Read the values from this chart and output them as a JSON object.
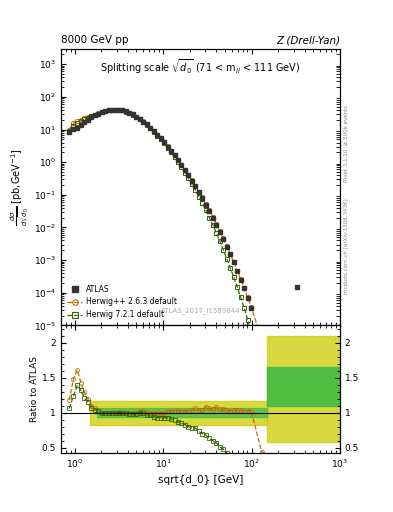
{
  "title_left": "8000 GeV pp",
  "title_right": "Z (Drell-Yan)",
  "plot_title": "Splitting scale $\\sqrt{\\overline{d_0}}$ (71 < m$_{ll}$ < 111 GeV)",
  "ylabel_main": "d$\\sigma$/dsqrt[d_0] [pb,GeV$^{-1}$]",
  "ylabel_ratio": "Ratio to ATLAS",
  "xlabel": "sqrt{d_0} [GeV]",
  "watermark": "ATLAS_2017_I1589844",
  "rivet_label": "Rivet 3.1.10, ≥ 500k events",
  "inspire_label": "mcplots.cern.ch [arXiv:1306.3436]",
  "xlim": [
    0.7,
    1000
  ],
  "ylim_main": [
    1e-05,
    3000.0
  ],
  "ylim_ratio": [
    0.42,
    2.25
  ],
  "atlas_x": [
    0.87,
    0.97,
    1.07,
    1.18,
    1.29,
    1.41,
    1.55,
    1.69,
    1.85,
    2.02,
    2.21,
    2.42,
    2.65,
    2.9,
    3.17,
    3.47,
    3.8,
    4.16,
    4.55,
    4.98,
    5.45,
    5.97,
    6.53,
    7.15,
    7.83,
    8.57,
    9.38,
    10.27,
    11.24,
    12.3,
    13.47,
    14.75,
    16.15,
    17.68,
    19.36,
    21.19,
    23.2,
    25.4,
    27.8,
    30.45,
    33.3,
    36.5,
    40.0,
    43.8,
    47.95,
    52.5,
    57.5,
    63.0,
    69.0,
    75.5,
    82.7,
    90.6,
    99.2,
    330.0
  ],
  "atlas_y": [
    8.5,
    10.5,
    11.5,
    14.0,
    17.0,
    20.0,
    24.0,
    27.0,
    30.0,
    34.0,
    37.0,
    39.0,
    41.0,
    41.0,
    40.0,
    38.5,
    36.0,
    33.0,
    29.0,
    25.0,
    21.0,
    17.5,
    14.5,
    11.5,
    9.0,
    7.0,
    5.4,
    4.1,
    3.0,
    2.2,
    1.6,
    1.15,
    0.82,
    0.58,
    0.4,
    0.27,
    0.18,
    0.12,
    0.08,
    0.05,
    0.032,
    0.02,
    0.012,
    0.0074,
    0.0044,
    0.0026,
    0.0015,
    0.00085,
    0.00046,
    0.00025,
    0.000135,
    7e-05,
    3.5e-05,
    0.00015
  ],
  "hw263_x": [
    0.87,
    0.97,
    1.07,
    1.18,
    1.29,
    1.41,
    1.55,
    1.69,
    1.85,
    2.02,
    2.21,
    2.42,
    2.65,
    2.9,
    3.17,
    3.47,
    3.8,
    4.16,
    4.55,
    4.98,
    5.45,
    5.97,
    6.53,
    7.15,
    7.83,
    8.57,
    9.38,
    10.27,
    11.24,
    12.3,
    13.47,
    14.75,
    16.15,
    17.68,
    19.36,
    21.19,
    23.2,
    25.4,
    27.8,
    30.45,
    33.3,
    36.5,
    40.0,
    43.8,
    47.95,
    52.5,
    57.5,
    63.0,
    69.0,
    75.5,
    82.7,
    90.6,
    99.2,
    130.0,
    330.0,
    900.0
  ],
  "hw263_y": [
    10.0,
    15.5,
    18.5,
    20.0,
    22.0,
    24.0,
    26.5,
    28.5,
    31.0,
    34.0,
    37.0,
    39.0,
    41.0,
    41.0,
    40.5,
    38.5,
    36.0,
    33.0,
    29.0,
    25.0,
    21.5,
    18.0,
    14.5,
    11.5,
    9.0,
    7.0,
    5.4,
    4.1,
    3.05,
    2.25,
    1.65,
    1.18,
    0.84,
    0.59,
    0.41,
    0.28,
    0.19,
    0.125,
    0.083,
    0.054,
    0.034,
    0.021,
    0.013,
    0.0078,
    0.0046,
    0.0027,
    0.00155,
    0.00088,
    0.00048,
    0.00026,
    0.000138,
    7.2e-05,
    3.6e-05,
    4e-06,
    3.2e-07,
    1e-08
  ],
  "hw721_x": [
    0.87,
    0.97,
    1.07,
    1.18,
    1.29,
    1.41,
    1.55,
    1.69,
    1.85,
    2.02,
    2.21,
    2.42,
    2.65,
    2.9,
    3.17,
    3.47,
    3.8,
    4.16,
    4.55,
    4.98,
    5.45,
    5.97,
    6.53,
    7.15,
    7.83,
    8.57,
    9.38,
    10.27,
    11.24,
    12.3,
    13.47,
    14.75,
    16.15,
    17.68,
    19.36,
    21.19,
    23.2,
    25.4,
    27.8,
    30.45,
    33.3,
    36.5,
    40.0,
    43.8,
    47.95,
    52.5,
    57.5,
    63.0,
    69.0,
    75.5,
    82.7,
    90.6,
    99.2,
    130.0,
    330.0,
    900.0
  ],
  "hw721_y": [
    9.0,
    13.0,
    16.0,
    18.5,
    20.5,
    23.0,
    25.5,
    28.0,
    30.5,
    33.5,
    36.5,
    38.5,
    40.5,
    41.0,
    40.0,
    38.5,
    35.5,
    32.5,
    28.5,
    24.5,
    21.0,
    17.5,
    14.0,
    11.0,
    8.5,
    6.5,
    5.0,
    3.8,
    2.75,
    2.0,
    1.42,
    1.0,
    0.7,
    0.48,
    0.32,
    0.21,
    0.14,
    0.088,
    0.056,
    0.034,
    0.02,
    0.012,
    0.0068,
    0.0038,
    0.0021,
    0.0011,
    0.00058,
    0.0003,
    0.00015,
    7.2e-05,
    3.4e-05,
    1.5e-05,
    6.5e-06,
    4e-07,
    1e-09,
    1e-11
  ],
  "ratio_hw263_x": [
    0.87,
    0.97,
    1.07,
    1.18,
    1.29,
    1.41,
    1.55,
    1.69,
    1.85,
    2.02,
    2.21,
    2.42,
    2.65,
    2.9,
    3.17,
    3.47,
    3.8,
    4.16,
    4.55,
    4.98,
    5.45,
    5.97,
    6.53,
    7.15,
    7.83,
    8.57,
    9.38,
    10.27,
    11.24,
    12.3,
    13.47,
    14.75,
    16.15,
    17.68,
    19.36,
    21.19,
    23.2,
    25.4,
    27.8,
    30.45,
    33.3,
    36.5,
    40.0,
    43.8,
    47.95,
    52.5,
    57.5,
    63.0,
    69.0,
    75.5,
    82.7,
    90.6,
    99.2,
    130.0,
    330.0
  ],
  "ratio_hw263_y": [
    1.18,
    1.48,
    1.61,
    1.43,
    1.29,
    1.2,
    1.1,
    1.06,
    1.03,
    1.0,
    1.0,
    1.0,
    1.0,
    1.0,
    1.01,
    1.0,
    1.0,
    1.0,
    1.0,
    1.0,
    1.02,
    1.03,
    1.0,
    1.0,
    1.0,
    1.0,
    1.0,
    1.0,
    1.02,
    1.02,
    1.03,
    1.03,
    1.02,
    1.02,
    1.03,
    1.04,
    1.06,
    1.04,
    1.04,
    1.08,
    1.06,
    1.05,
    1.08,
    1.05,
    1.05,
    1.04,
    1.03,
    1.04,
    1.04,
    1.04,
    1.02,
    1.03,
    1.03,
    0.44,
    0.21
  ],
  "ratio_hw721_x": [
    0.87,
    0.97,
    1.07,
    1.18,
    1.29,
    1.41,
    1.55,
    1.69,
    1.85,
    2.02,
    2.21,
    2.42,
    2.65,
    2.9,
    3.17,
    3.47,
    3.8,
    4.16,
    4.55,
    4.98,
    5.45,
    5.97,
    6.53,
    7.15,
    7.83,
    8.57,
    9.38,
    10.27,
    11.24,
    12.3,
    13.47,
    14.75,
    16.15,
    17.68,
    19.36,
    21.19,
    23.2,
    25.4,
    27.8,
    30.45,
    33.3,
    36.5,
    40.0,
    43.8,
    47.95,
    52.5,
    57.5,
    63.0,
    69.0,
    75.5,
    82.7,
    90.6,
    99.2,
    130.0,
    330.0
  ],
  "ratio_hw721_y": [
    1.06,
    1.24,
    1.39,
    1.32,
    1.21,
    1.15,
    1.06,
    1.04,
    1.02,
    0.99,
    0.99,
    0.99,
    0.99,
    1.0,
    1.0,
    1.0,
    0.99,
    0.98,
    0.98,
    0.98,
    1.0,
    1.0,
    0.97,
    0.96,
    0.94,
    0.93,
    0.93,
    0.93,
    0.92,
    0.91,
    0.89,
    0.87,
    0.85,
    0.83,
    0.8,
    0.78,
    0.78,
    0.73,
    0.7,
    0.68,
    0.63,
    0.6,
    0.57,
    0.51,
    0.48,
    0.42,
    0.39,
    0.35,
    0.33,
    0.29,
    0.25,
    0.21,
    0.19,
    0.04,
    0.0
  ],
  "color_atlas": "#333333",
  "color_hw263": "#cc6600",
  "color_hw721": "#336600",
  "color_band_yellow": "#cccc00",
  "color_band_green": "#44bb44"
}
